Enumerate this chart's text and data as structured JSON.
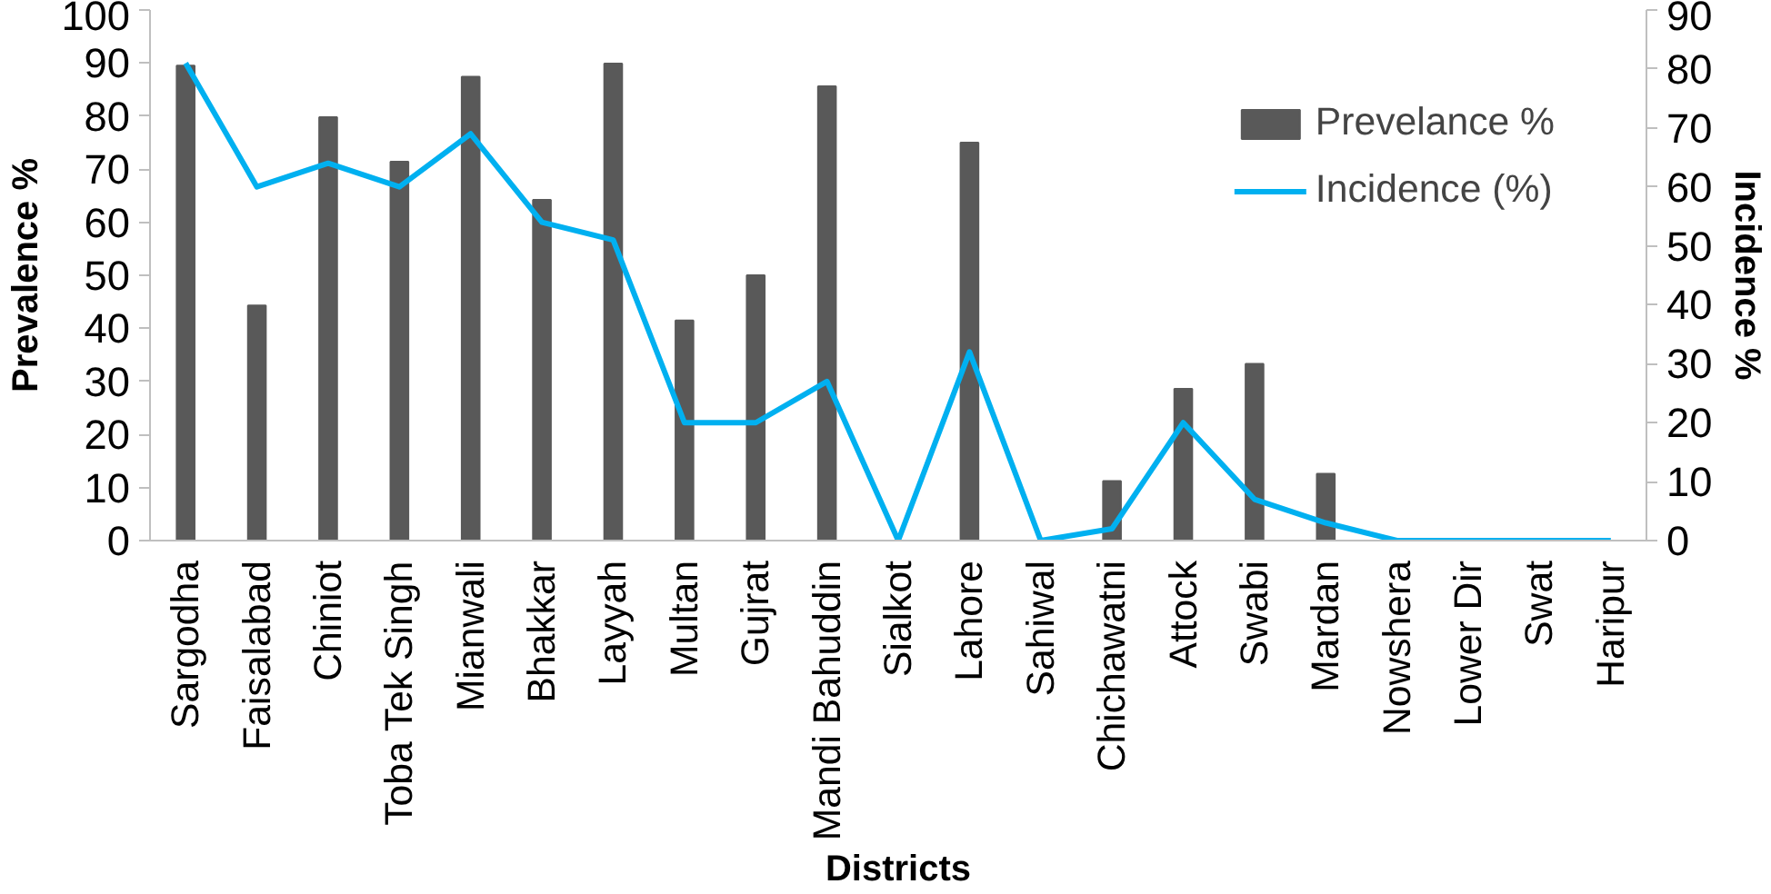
{
  "chart_data": {
    "type": "bar",
    "xlabel": "Districts",
    "ylabel": "Prevalence %",
    "y2label": "Incidence %",
    "categories": [
      "Sargodha",
      "Faisalabad",
      "Chiniot",
      "Toba Tek Singh",
      "Mianwali",
      "Bhakkar",
      "Layyah",
      "Multan",
      "Gujrat",
      "Mandi Bahuddin",
      "Sialkot",
      "Lahore",
      "Sahiwal",
      "Chichawatni",
      "Attock",
      "Swabi",
      "Mardan",
      "Nowshera",
      "Lower Dir",
      "Swat",
      "Haripur"
    ],
    "series": [
      {
        "name": "Prevelance %",
        "color": "#595959",
        "values": [
          89.5,
          44.3,
          79.8,
          71.4,
          87.4,
          64.2,
          89.9,
          41.5,
          50,
          85.6,
          0,
          75,
          0,
          11.2,
          28.6,
          33.3,
          12.6,
          0,
          0,
          0,
          0
        ]
      },
      {
        "name": "Incidence (%)",
        "type": "line",
        "axis": "y2",
        "color": "#00b0f0",
        "values": [
          81,
          60,
          64,
          60,
          69,
          54,
          51,
          20,
          20,
          27,
          0,
          32,
          0,
          2,
          20,
          7,
          3,
          0,
          0,
          0,
          0
        ]
      }
    ],
    "ylim": [
      0,
      100
    ],
    "yticks": [
      0,
      10,
      20,
      30,
      40,
      50,
      60,
      70,
      80,
      90,
      100
    ],
    "y2lim": [
      0,
      90
    ],
    "y2ticks": [
      0,
      10,
      20,
      30,
      40,
      50,
      60,
      70,
      80,
      90
    ],
    "grid": false,
    "legend": "top right",
    "marker": "none"
  }
}
